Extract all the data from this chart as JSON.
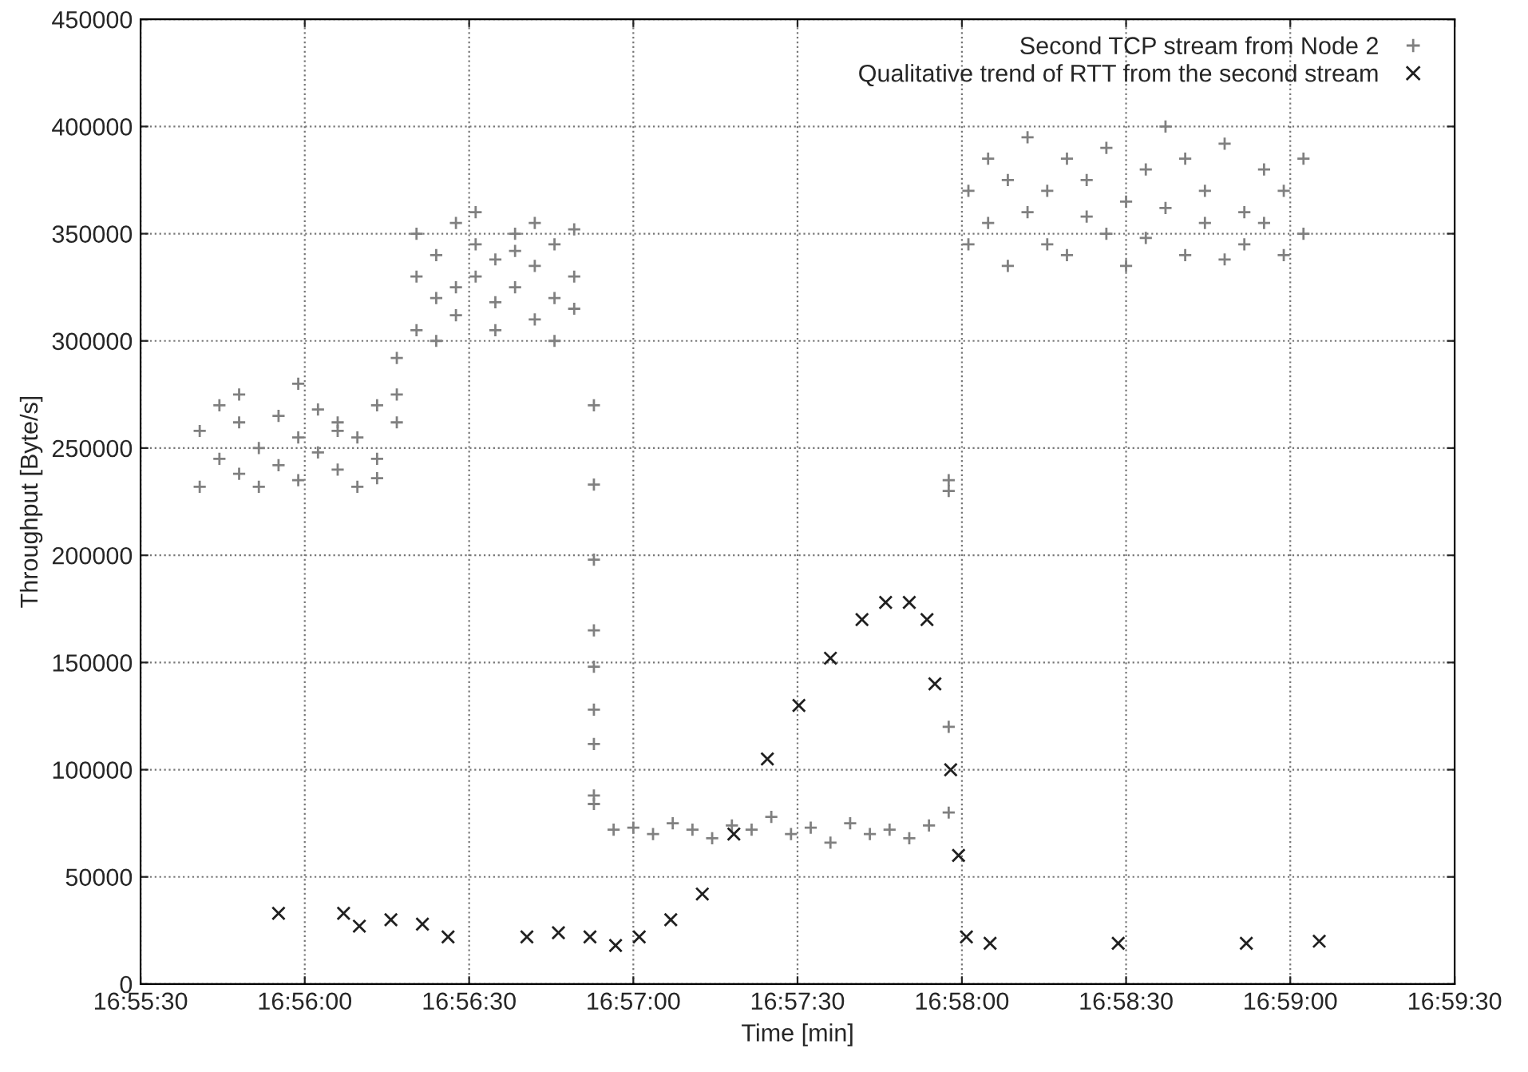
{
  "chart_data": {
    "type": "scatter",
    "xlabel": "Time [min]",
    "ylabel": "Throughput [Byte/s]",
    "xlim": [
      16.925,
      16.99167
    ],
    "ylim": [
      0,
      450000
    ],
    "xticks": [
      {
        "value": 16.925,
        "label": "16:55:30"
      },
      {
        "value": 16.93333,
        "label": "16:56:00"
      },
      {
        "value": 16.94167,
        "label": "16:56:30"
      },
      {
        "value": 16.95,
        "label": "16:57:00"
      },
      {
        "value": 16.95833,
        "label": "16:57:30"
      },
      {
        "value": 16.96667,
        "label": "16:58:00"
      },
      {
        "value": 16.975,
        "label": "16:58:30"
      },
      {
        "value": 16.98333,
        "label": "16:59:00"
      },
      {
        "value": 16.99167,
        "label": "16:59:30"
      }
    ],
    "yticks": [
      0,
      50000,
      100000,
      150000,
      200000,
      250000,
      300000,
      350000,
      400000,
      450000
    ],
    "grid": true,
    "legend": "top right",
    "series": [
      {
        "name": "Second TCP stream from Node 2",
        "color": "#808080",
        "marker": "cross",
        "x": [
          16.928,
          16.928,
          16.929,
          16.929,
          16.93,
          16.93,
          16.93,
          16.931,
          16.931,
          16.932,
          16.932,
          16.933,
          16.933,
          16.933,
          16.934,
          16.934,
          16.935,
          16.935,
          16.935,
          16.936,
          16.936,
          16.937,
          16.937,
          16.937,
          16.938,
          16.938,
          16.938,
          16.939,
          16.939,
          16.939,
          16.94,
          16.94,
          16.94,
          16.941,
          16.941,
          16.941,
          16.942,
          16.942,
          16.942,
          16.943,
          16.943,
          16.943,
          16.944,
          16.944,
          16.944,
          16.945,
          16.945,
          16.945,
          16.946,
          16.946,
          16.946,
          16.947,
          16.947,
          16.947,
          16.948,
          16.948,
          16.948,
          16.948,
          16.948,
          16.948,
          16.948,
          16.948,
          16.948,
          16.949,
          16.95,
          16.951,
          16.952,
          16.953,
          16.954,
          16.955,
          16.956,
          16.957,
          16.958,
          16.959,
          16.96,
          16.961,
          16.962,
          16.963,
          16.964,
          16.965,
          16.966,
          16.966,
          16.966,
          16.966,
          16.967,
          16.967,
          16.968,
          16.968,
          16.969,
          16.969,
          16.97,
          16.97,
          16.971,
          16.971,
          16.972,
          16.972,
          16.973,
          16.973,
          16.974,
          16.974,
          16.975,
          16.975,
          16.976,
          16.976,
          16.977,
          16.977,
          16.978,
          16.978,
          16.979,
          16.979,
          16.98,
          16.98,
          16.981,
          16.981,
          16.982,
          16.982,
          16.983,
          16.983,
          16.984,
          16.984
        ],
        "values": [
          258000,
          232000,
          270000,
          245000,
          262000,
          238000,
          275000,
          250000,
          232000,
          265000,
          242000,
          280000,
          255000,
          235000,
          268000,
          248000,
          258000,
          240000,
          262000,
          232000,
          255000,
          270000,
          245000,
          236000,
          262000,
          275000,
          292000,
          330000,
          305000,
          350000,
          320000,
          340000,
          300000,
          355000,
          325000,
          312000,
          345000,
          330000,
          360000,
          318000,
          338000,
          305000,
          350000,
          325000,
          342000,
          310000,
          335000,
          355000,
          320000,
          300000,
          345000,
          330000,
          315000,
          352000,
          270000,
          233000,
          198000,
          165000,
          148000,
          128000,
          112000,
          88000,
          84000,
          72000,
          73000,
          70000,
          75000,
          72000,
          68000,
          74000,
          72000,
          78000,
          70000,
          73000,
          66000,
          75000,
          70000,
          72000,
          68000,
          74000,
          235000,
          230000,
          120000,
          80000,
          370000,
          345000,
          385000,
          355000,
          335000,
          375000,
          360000,
          395000,
          345000,
          370000,
          340000,
          385000,
          358000,
          375000,
          350000,
          390000,
          335000,
          365000,
          380000,
          348000,
          400000,
          362000,
          340000,
          385000,
          355000,
          370000,
          338000,
          392000,
          360000,
          345000,
          380000,
          355000,
          370000,
          340000,
          385000,
          350000
        ]
      },
      {
        "name": "Qualitative trend of RTT from the second stream",
        "color": "#202020",
        "marker": "x",
        "x": [
          16.932,
          16.9353,
          16.9361,
          16.9377,
          16.9393,
          16.9406,
          16.9446,
          16.9462,
          16.9478,
          16.9491,
          16.9503,
          16.9519,
          16.9535,
          16.9551,
          16.9568,
          16.9584,
          16.96,
          16.9616,
          16.9628,
          16.964,
          16.9649,
          16.9653,
          16.9661,
          16.9665,
          16.9669,
          16.9681,
          16.9746,
          16.9811,
          16.9848
        ],
        "values": [
          33000,
          33000,
          27000,
          30000,
          28000,
          22000,
          22000,
          24000,
          22000,
          18000,
          22000,
          30000,
          42000,
          70000,
          105000,
          130000,
          152000,
          170000,
          178000,
          178000,
          170000,
          140000,
          100000,
          60000,
          22000,
          19000,
          19000,
          19000,
          20000
        ]
      }
    ]
  }
}
